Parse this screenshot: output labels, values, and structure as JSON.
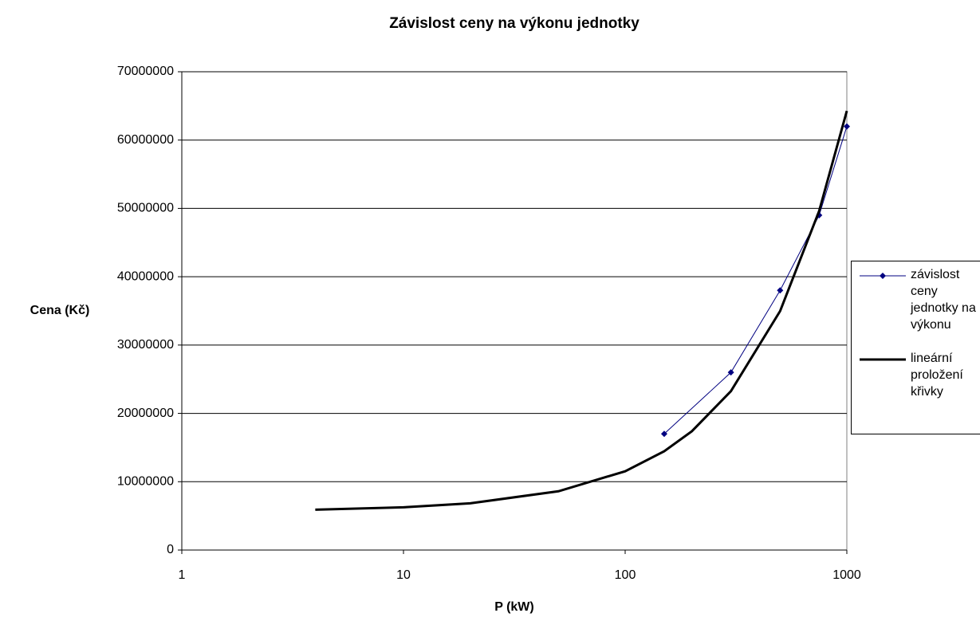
{
  "chart_data": {
    "type": "line",
    "title": "Závislost ceny na výkonu jednotky",
    "x_label": "P (kW)",
    "y_label": "Cena (Kč)",
    "xscale": "log",
    "xlim": [
      1,
      1000
    ],
    "xticks": [
      1,
      10,
      100,
      1000
    ],
    "ylim": [
      0,
      70000000
    ],
    "yticks": [
      0,
      10000000,
      20000000,
      30000000,
      40000000,
      50000000,
      60000000,
      70000000
    ],
    "grid": true,
    "legend": "right",
    "series": [
      {
        "name": "závislost ceny jednotky na výkonu",
        "color": "#000080",
        "marker": "diamond",
        "width": 1,
        "x": [
          150,
          300,
          500,
          750,
          1000
        ],
        "values": [
          17000000,
          26000000,
          38000000,
          49000000,
          62000000
        ]
      },
      {
        "name": "lineární proložení křivky",
        "color": "#000000",
        "marker": "none",
        "width": 3,
        "x": [
          4,
          10,
          20,
          50,
          100,
          150,
          200,
          300,
          500,
          750,
          1000
        ],
        "values": [
          5900000,
          6250000,
          6840000,
          8600000,
          11530000,
          14460000,
          17390000,
          23250000,
          34970000,
          49620000,
          64270000
        ]
      }
    ]
  }
}
